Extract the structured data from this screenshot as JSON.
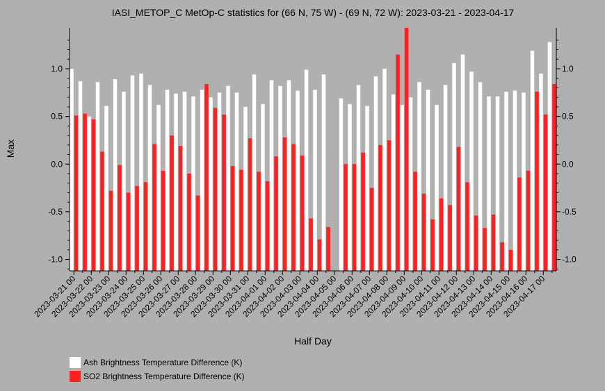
{
  "chart_data": {
    "type": "bar",
    "title": "IASI_METOP_C MetOp-C statistics for (66 N, 75 W) - (69 N, 72 W): 2023-03-21 - 2023-04-17",
    "xlabel": "Half Day",
    "ylabel": "Max",
    "ylim": [
      -1.12,
      1.43
    ],
    "yticks": [
      -1.0,
      -0.5,
      0.0,
      0.5,
      1.0
    ],
    "ytick_labels": [
      "-1.0",
      "-0.5",
      "0.0",
      "0.5",
      "1.0"
    ],
    "xtick_labels": [
      "2023-03-21 00",
      "2023-03-22 00",
      "2023-03-23 00",
      "2023-03-24 00",
      "2023-03-25 00",
      "2023-03-26 00",
      "2023-03-27 00",
      "2023-03-28 00",
      "2023-03-29 00",
      "2023-03-30 00",
      "2023-03-31 00",
      "2023-04-01 00",
      "2023-04-02 00",
      "2023-04-03 00",
      "2023-04-04 00",
      "2023-04-05 00",
      "2023-04-06 00",
      "2023-04-07 00",
      "2023-04-08 00",
      "2023-04-09 00",
      "2023-04-10 00",
      "2023-04-11 00",
      "2023-04-12 00",
      "2023-04-13 00",
      "2023-04-14 00",
      "2023-04-15 00",
      "2023-04-16 00",
      "2023-04-17 00"
    ],
    "categories": [
      "2023-03-21 00",
      "2023-03-21 12",
      "2023-03-22 00",
      "2023-03-22 12",
      "2023-03-23 00",
      "2023-03-23 12",
      "2023-03-24 00",
      "2023-03-24 12",
      "2023-03-25 00",
      "2023-03-25 12",
      "2023-03-26 00",
      "2023-03-26 12",
      "2023-03-27 00",
      "2023-03-27 12",
      "2023-03-28 00",
      "2023-03-28 12",
      "2023-03-29 00",
      "2023-03-29 12",
      "2023-03-30 00",
      "2023-03-30 12",
      "2023-03-31 00",
      "2023-03-31 12",
      "2023-04-01 00",
      "2023-04-01 12",
      "2023-04-02 00",
      "2023-04-02 12",
      "2023-04-03 00",
      "2023-04-03 12",
      "2023-04-04 00",
      "2023-04-04 12",
      "2023-04-05 00",
      "2023-04-05 12",
      "2023-04-06 00",
      "2023-04-06 12",
      "2023-04-07 00",
      "2023-04-07 12",
      "2023-04-08 00",
      "2023-04-08 12",
      "2023-04-09 00",
      "2023-04-09 12",
      "2023-04-10 00",
      "2023-04-10 12",
      "2023-04-11 00",
      "2023-04-11 12",
      "2023-04-12 00",
      "2023-04-12 12",
      "2023-04-13 00",
      "2023-04-13 12",
      "2023-04-14 00",
      "2023-04-14 12",
      "2023-04-15 00",
      "2023-04-15 12",
      "2023-04-16 00",
      "2023-04-16 12",
      "2023-04-17 00",
      "2023-04-17 12"
    ],
    "series": [
      {
        "name": "Ash Brightness Temperature Difference (K)",
        "color": "#ffffff",
        "values": [
          1.0,
          0.87,
          0.5,
          0.86,
          0.61,
          0.89,
          0.76,
          0.93,
          0.95,
          0.83,
          0.62,
          0.78,
          0.74,
          0.76,
          0.71,
          0.78,
          0.7,
          0.75,
          0.82,
          0.75,
          0.6,
          0.94,
          0.63,
          0.88,
          0.82,
          0.88,
          0.77,
          0.99,
          0.78,
          0.94,
          null,
          0.69,
          0.63,
          0.83,
          0.61,
          0.92,
          1.0,
          0.73,
          0.62,
          0.7,
          0.86,
          0.78,
          0.62,
          0.83,
          1.06,
          1.15,
          0.97,
          0.86,
          0.71,
          0.71,
          0.76,
          0.77,
          0.75,
          1.19,
          0.95,
          1.28
        ]
      },
      {
        "name": "SO2 Brightness Temperature Difference (K)",
        "color": "#ff2020",
        "values": [
          0.51,
          0.53,
          0.47,
          0.13,
          -0.28,
          -0.01,
          -0.3,
          -0.23,
          -0.19,
          0.21,
          -0.07,
          0.3,
          0.19,
          -0.1,
          -0.33,
          0.84,
          0.59,
          0.52,
          -0.02,
          -0.06,
          0.27,
          -0.08,
          -0.18,
          0.08,
          0.28,
          0.21,
          0.09,
          -0.57,
          -0.79,
          -0.66,
          null,
          0.0,
          0.0,
          0.12,
          -0.25,
          0.2,
          0.25,
          1.15,
          1.43,
          -0.08,
          -0.31,
          -0.58,
          -0.36,
          -0.43,
          0.18,
          -0.19,
          -0.54,
          -0.67,
          -0.53,
          -0.82,
          -0.9,
          -0.14,
          -0.07,
          0.76,
          0.52,
          0.84
        ]
      }
    ]
  }
}
